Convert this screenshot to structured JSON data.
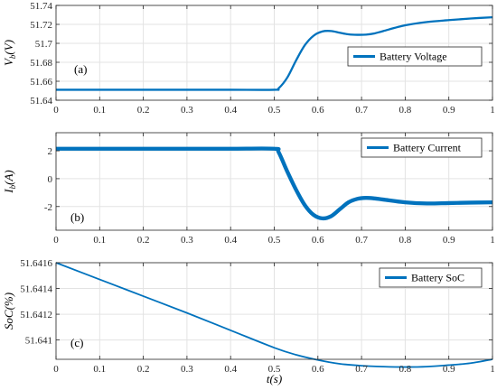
{
  "chart_data": [
    {
      "type": "line",
      "panel_label": "(a)",
      "ylabel_main": "V",
      "ylabel_sub": "b",
      "ylabel_unit": "(V)",
      "xlim": [
        0,
        1
      ],
      "ylim": [
        51.64,
        51.74
      ],
      "x_ticks": [
        "0",
        "0.1",
        "0.2",
        "0.3",
        "0.4",
        "0.5",
        "0.6",
        "0.7",
        "0.8",
        "0.9",
        "1"
      ],
      "y_ticks": [
        51.64,
        51.66,
        51.68,
        51.7,
        51.72,
        51.74
      ],
      "y_tick_labels": [
        "51.64",
        "51.66",
        "51.68",
        "51.7",
        "51.72",
        "51.74"
      ],
      "grid": true,
      "legend_position": "right",
      "color": "#0072BD",
      "series": [
        {
          "name": "Battery Voltage",
          "band": 0.0022,
          "x": [
            0,
            0.1,
            0.2,
            0.3,
            0.4,
            0.5,
            0.51,
            0.53,
            0.55,
            0.57,
            0.59,
            0.61,
            0.63,
            0.65,
            0.67,
            0.69,
            0.71,
            0.73,
            0.75,
            0.8,
            0.85,
            0.9,
            0.95,
            1.0
          ],
          "y": [
            51.651,
            51.651,
            51.651,
            51.651,
            51.651,
            51.651,
            51.6525,
            51.664,
            51.682,
            51.698,
            51.708,
            51.7125,
            51.713,
            51.7112,
            51.7095,
            51.709,
            51.7092,
            51.7105,
            51.713,
            51.719,
            51.7225,
            51.7245,
            51.7262,
            51.7275
          ]
        }
      ]
    },
    {
      "type": "line",
      "panel_label": "(b)",
      "ylabel_main": "I",
      "ylabel_sub": "b",
      "ylabel_unit": "(A)",
      "xlim": [
        0,
        1
      ],
      "ylim": [
        -3.7,
        3.3
      ],
      "x_ticks": [
        "0",
        "0.1",
        "0.2",
        "0.3",
        "0.4",
        "0.5",
        "0.6",
        "0.7",
        "0.8",
        "0.9",
        "1"
      ],
      "y_ticks": [
        -2,
        0,
        2
      ],
      "y_tick_labels": [
        "-2",
        "0",
        "2"
      ],
      "grid": true,
      "legend_position": "top-right",
      "color": "#0072BD",
      "series": [
        {
          "name": "Battery Current",
          "band": 0.28,
          "x": [
            0,
            0.1,
            0.2,
            0.3,
            0.4,
            0.5,
            0.51,
            0.53,
            0.55,
            0.57,
            0.59,
            0.61,
            0.63,
            0.65,
            0.67,
            0.69,
            0.71,
            0.73,
            0.75,
            0.8,
            0.85,
            0.9,
            0.95,
            1.0
          ],
          "y": [
            2.15,
            2.15,
            2.15,
            2.15,
            2.15,
            2.15,
            1.9,
            0.5,
            -0.8,
            -1.9,
            -2.6,
            -2.85,
            -2.7,
            -2.2,
            -1.7,
            -1.45,
            -1.38,
            -1.42,
            -1.5,
            -1.7,
            -1.78,
            -1.75,
            -1.72,
            -1.7
          ]
        }
      ]
    },
    {
      "type": "line",
      "panel_label": "(c)",
      "ylabel_main": "SoC",
      "ylabel_unit": "(%)",
      "xlabel_main": "t",
      "xlabel_unit": "(s)",
      "xlim": [
        0,
        1
      ],
      "ylim": [
        51.64085,
        51.6416
      ],
      "x_ticks": [
        "0",
        "0.1",
        "0.2",
        "0.3",
        "0.4",
        "0.5",
        "0.6",
        "0.7",
        "0.8",
        "0.9",
        "1"
      ],
      "y_ticks": [
        51.641,
        51.6412,
        51.6414,
        51.6416
      ],
      "y_tick_labels": [
        "51.641",
        "51.6412",
        "51.6414",
        "51.6416"
      ],
      "grid": true,
      "legend_position": "top-right",
      "color": "#0072BD",
      "series": [
        {
          "name": "Battery SoC",
          "band": 0,
          "x": [
            0,
            0.1,
            0.2,
            0.3,
            0.4,
            0.5,
            0.55,
            0.6,
            0.65,
            0.7,
            0.75,
            0.8,
            0.85,
            0.9,
            0.95,
            1.0
          ],
          "y": [
            51.6416,
            51.64147,
            51.64134,
            51.64121,
            51.641075,
            51.64094,
            51.640885,
            51.640845,
            51.640815,
            51.6408,
            51.640793,
            51.64079,
            51.640793,
            51.640805,
            51.64082,
            51.64085
          ]
        }
      ]
    }
  ]
}
